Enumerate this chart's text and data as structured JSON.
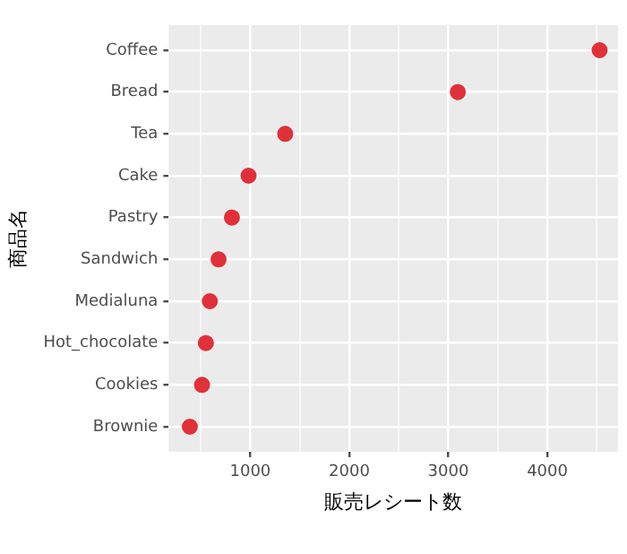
{
  "chart_data": {
    "type": "scatter",
    "orientation": "horizontal",
    "xlabel": "販売レシート数",
    "ylabel": "商品名",
    "categories": [
      "Coffee",
      "Bread",
      "Tea",
      "Cake",
      "Pastry",
      "Sandwich",
      "Medialuna",
      "Hot_chocolate",
      "Cookies",
      "Brownie"
    ],
    "values": [
      4528,
      3096,
      1353,
      983,
      815,
      680,
      592,
      552,
      513,
      390
    ],
    "color": "#e0313a",
    "xlim": [
      177,
      4714
    ],
    "xticks": [
      {
        "value": 500,
        "label": null
      },
      1000,
      {
        "value": 1500,
        "label": null
      },
      2000,
      {
        "value": 2500,
        "label": null
      },
      3000,
      {
        "value": 3500,
        "label": null
      },
      4000,
      {
        "value": 4500,
        "label": null
      }
    ],
    "grid": true,
    "marker": "circle",
    "legend": false
  }
}
